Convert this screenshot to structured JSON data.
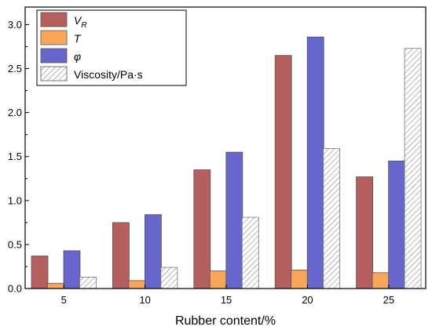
{
  "chart_data": {
    "type": "bar",
    "title": "",
    "xlabel": "Rubber content/%",
    "ylabel": "",
    "categories": [
      "5",
      "10",
      "15",
      "20",
      "25"
    ],
    "ylim": [
      0,
      3.2
    ],
    "yticks": [
      "0.0",
      "0.5",
      "1.0",
      "1.5",
      "2.0",
      "2.5",
      "3.0"
    ],
    "grid": false,
    "legend_position": "top-left",
    "series": [
      {
        "name": "V",
        "subscript": "R",
        "italic": true,
        "color": "#b5605f",
        "pattern": "solid",
        "values": [
          0.37,
          0.75,
          1.35,
          2.65,
          1.27
        ]
      },
      {
        "name": "T",
        "italic": true,
        "color": "#f7a65a",
        "pattern": "solid",
        "values": [
          0.06,
          0.09,
          0.2,
          0.21,
          0.18
        ]
      },
      {
        "name": "φ",
        "italic": true,
        "color": "#6666cc",
        "pattern": "solid",
        "values": [
          0.43,
          0.84,
          1.55,
          2.86,
          1.45
        ]
      },
      {
        "name": "Viscosity/Pa·s",
        "italic": false,
        "color": "#ffffff",
        "pattern": "hatch",
        "values": [
          0.13,
          0.24,
          0.81,
          1.59,
          2.73
        ]
      }
    ]
  }
}
